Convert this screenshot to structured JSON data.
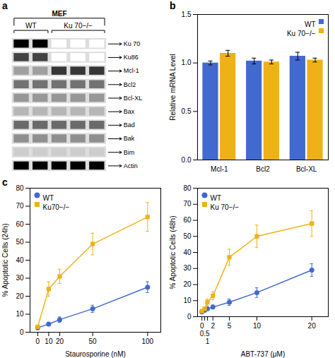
{
  "chart_data": [
    {
      "type": "heatmap",
      "annotations": [
        "a"
      ],
      "title": "MEF",
      "categories": [
        "Ku 70",
        "Ku86",
        "Mcl-1",
        "Bcl2",
        "Bcl-XL",
        "Bax",
        "Bad",
        "Bak",
        "Bim",
        "Actin"
      ],
      "x": [
        "WT",
        "WT",
        "Ku 70−/−",
        "Ku 70−/−",
        "Ku 70−/−"
      ],
      "cells": [
        [
          0.88,
          0.88,
          0.12,
          0.12,
          0.12
        ],
        [
          0.72,
          0.72,
          0.12,
          0.12,
          0.12
        ],
        [
          0.48,
          0.48,
          0.75,
          0.75,
          0.75
        ],
        [
          0.6,
          0.6,
          0.6,
          0.6,
          0.6
        ],
        [
          0.5,
          0.5,
          0.5,
          0.5,
          0.5
        ],
        [
          0.42,
          0.42,
          0.42,
          0.42,
          0.42
        ],
        [
          0.62,
          0.62,
          0.62,
          0.62,
          0.62
        ],
        [
          0.52,
          0.52,
          0.52,
          0.52,
          0.52
        ],
        [
          0.35,
          0.35,
          0.35,
          0.35,
          0.35
        ],
        [
          0.88,
          0.88,
          0.88,
          0.88,
          0.88
        ]
      ]
    },
    {
      "type": "bar",
      "annotations": [
        "b"
      ],
      "categories": [
        "Mcl-1",
        "Bcl2",
        "Bcl-XL"
      ],
      "series": [
        {
          "name": "WT",
          "values": [
            1.0,
            1.02,
            1.07
          ],
          "errors": [
            0.02,
            0.03,
            0.04
          ]
        },
        {
          "name": "Ku 70−/−",
          "values": [
            1.1,
            1.01,
            1.03
          ],
          "errors": [
            0.03,
            0.02,
            0.02
          ]
        }
      ],
      "ylabel": "Relative mRNA Level",
      "ylim": [
        0,
        1.5
      ],
      "yticks": [
        {
          "value": 0,
          "label": "0.0"
        },
        0.5,
        {
          "value": 1.0,
          "label": "1.0"
        },
        1.5
      ],
      "legend": "upper right",
      "grid": false
    },
    {
      "type": "line",
      "annotations": [
        "c"
      ],
      "x": [
        0,
        10,
        20,
        50,
        100
      ],
      "series": [
        {
          "name": "WT",
          "values": [
            2.5,
            4.5,
            7.0,
            13.0,
            25.0
          ],
          "errors": [
            0.5,
            1.0,
            1.5,
            2.0,
            3.0
          ],
          "marker": "circle"
        },
        {
          "name": "Ku70−/−",
          "values": [
            3.0,
            24.0,
            31.0,
            49.0,
            64.0
          ],
          "errors": [
            1.0,
            4.0,
            4.0,
            6.0,
            8.0
          ],
          "marker": "square"
        }
      ],
      "xlabel": "Staurosporine (nM)",
      "ylabel": "% Apoptotic Cells (24h)",
      "xlim": [
        -7,
        112
      ],
      "xticks": [
        0,
        10,
        20,
        50,
        100
      ],
      "ylim": [
        0,
        80
      ],
      "yticks": [
        0,
        10,
        20,
        30,
        40,
        50,
        60,
        70,
        80
      ],
      "legend": "upper left",
      "grid": false
    },
    {
      "type": "line",
      "x": [
        0,
        0.5,
        1,
        2,
        5,
        10,
        20
      ],
      "series": [
        {
          "name": "WT",
          "values": [
            3.0,
            4.0,
            5.0,
            6.0,
            9.0,
            15.0,
            29.0
          ],
          "errors": [
            0.5,
            0.8,
            1.0,
            1.2,
            2.0,
            3.0,
            4.0
          ],
          "marker": "circle"
        },
        {
          "name": "Ku 70−/−",
          "values": [
            3.5,
            5.0,
            9.0,
            13.0,
            37.0,
            50.0,
            58.0
          ],
          "errors": [
            0.8,
            1.0,
            2.0,
            2.5,
            5.0,
            7.0,
            8.0
          ],
          "marker": "square"
        }
      ],
      "xlabel": "ABT-737 (μM)",
      "ylabel": "% Apoptotic Cells (48h)",
      "xlim": [
        -0.8,
        23
      ],
      "xticks": [
        0,
        0.5,
        1,
        2,
        5,
        10,
        20
      ],
      "ylim": [
        0,
        80
      ],
      "yticks": [
        0,
        10,
        20,
        30,
        40,
        50,
        60,
        70,
        80
      ],
      "legend": "upper left",
      "grid": false
    }
  ]
}
